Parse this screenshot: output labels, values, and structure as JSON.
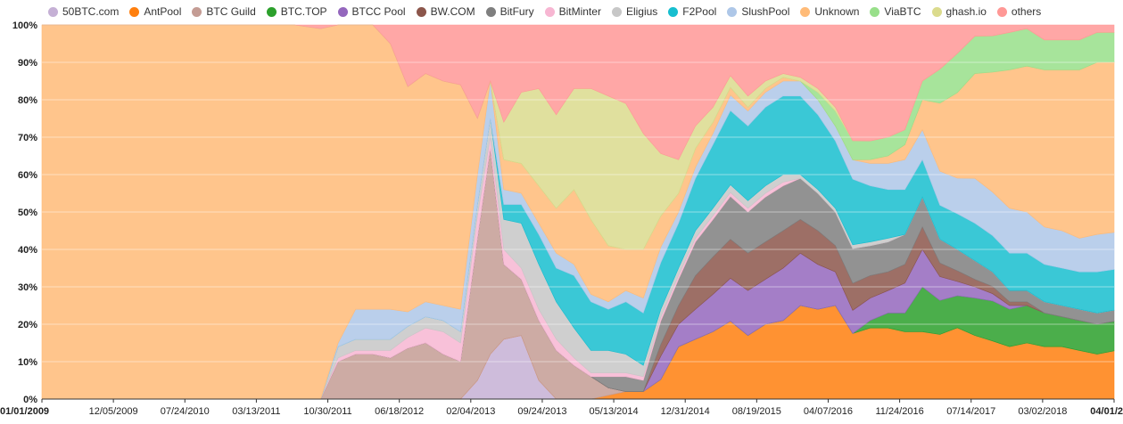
{
  "chart_data": {
    "type": "area",
    "stacked": true,
    "normalized": true,
    "grid": true,
    "legend_position": "top",
    "ylim": [
      0,
      100
    ],
    "y_ticks": [
      "0%",
      "10%",
      "20%",
      "30%",
      "40%",
      "50%",
      "60%",
      "70%",
      "80%",
      "90%",
      "100%"
    ],
    "x_ticks": [
      "01/01/2009",
      "12/05/2009",
      "07/24/2010",
      "03/13/2011",
      "10/30/2011",
      "06/18/2012",
      "02/04/2013",
      "09/24/2013",
      "05/13/2014",
      "12/31/2014",
      "08/19/2015",
      "04/07/2016",
      "11/24/2016",
      "07/14/2017",
      "03/02/2018",
      "04/01/2"
    ],
    "x": [
      "2009-01-01",
      "2011-03-01",
      "2011-06-01",
      "2011-09-01",
      "2011-11-01",
      "2012-01-01",
      "2012-03-01",
      "2012-05-01",
      "2012-07-01",
      "2012-09-01",
      "2012-11-01",
      "2013-01-01",
      "2013-03-01",
      "2013-04-15",
      "2013-06-01",
      "2013-08-01",
      "2013-10-01",
      "2013-12-01",
      "2014-02-01",
      "2014-04-01",
      "2014-06-01",
      "2014-08-01",
      "2014-10-01",
      "2014-12-01",
      "2015-02-01",
      "2015-04-01",
      "2015-06-01",
      "2015-08-01",
      "2015-10-01",
      "2015-12-01",
      "2016-02-01",
      "2016-04-01",
      "2016-06-01",
      "2016-08-01",
      "2016-10-01",
      "2016-12-01",
      "2017-02-01",
      "2017-04-01",
      "2017-06-01",
      "2017-08-01",
      "2017-10-01",
      "2017-12-01",
      "2018-02-01",
      "2018-04-01",
      "2018-06-01",
      "2018-08-01",
      "2018-10-01",
      "2018-12-01",
      "2019-02-01",
      "2019-04-01"
    ],
    "series": [
      {
        "name": "50BTC.com",
        "color": "#c5b0d5",
        "values": [
          0,
          0,
          0,
          0,
          0,
          0,
          0,
          0,
          0,
          0,
          0,
          0,
          5,
          12,
          16,
          17,
          5,
          0,
          0,
          0,
          0,
          0,
          0,
          0,
          0,
          0,
          0,
          0,
          0,
          0,
          0,
          0,
          0,
          0,
          0,
          0,
          0,
          0,
          0,
          0,
          0,
          0,
          0,
          0,
          0,
          0,
          0,
          0,
          0,
          0
        ]
      },
      {
        "name": "AntPool",
        "color": "#ff7f0e",
        "values": [
          0,
          0,
          0,
          0,
          0,
          0,
          0,
          0,
          0,
          0,
          0,
          0,
          0,
          0,
          0,
          0,
          0,
          0,
          0,
          0,
          1,
          2,
          2,
          5,
          14,
          16,
          18,
          20,
          17,
          20,
          21,
          25,
          24,
          25,
          17,
          19,
          19,
          18,
          18,
          19,
          20,
          17,
          16,
          14,
          15,
          14,
          14,
          13,
          12,
          13
        ]
      },
      {
        "name": "BTC Guild",
        "color": "#c49c94",
        "values": [
          0,
          0,
          0,
          0,
          10,
          12,
          12,
          11,
          14,
          15,
          12,
          10,
          38,
          55,
          20,
          15,
          16,
          13,
          9,
          6,
          2,
          0,
          0,
          0,
          0,
          0,
          0,
          0,
          0,
          0,
          0,
          0,
          0,
          0,
          0,
          0,
          0,
          0,
          0,
          0,
          0,
          0,
          0,
          0,
          0,
          0,
          0,
          0,
          0,
          0
        ]
      },
      {
        "name": "BTC.TOP",
        "color": "#2ca02c",
        "values": [
          0,
          0,
          0,
          0,
          0,
          0,
          0,
          0,
          0,
          0,
          0,
          0,
          0,
          0,
          0,
          0,
          0,
          0,
          0,
          0,
          0,
          0,
          0,
          0,
          0,
          0,
          0,
          0,
          0,
          0,
          0,
          0,
          0,
          0,
          0,
          2,
          4,
          5,
          12,
          10,
          9,
          10,
          11,
          10,
          10,
          9,
          8,
          8,
          8,
          8
        ]
      },
      {
        "name": "BTCC Pool",
        "color": "#9467bd",
        "values": [
          0,
          0,
          0,
          0,
          0,
          0,
          0,
          0,
          0,
          0,
          0,
          0,
          0,
          0,
          0,
          0,
          0,
          0,
          0,
          0,
          0,
          0,
          0,
          6,
          6,
          8,
          10,
          11,
          12,
          12,
          14,
          14,
          12,
          9,
          6,
          6,
          6,
          8,
          10,
          7,
          4,
          3,
          2,
          1,
          0,
          0,
          0,
          0,
          0,
          0
        ]
      },
      {
        "name": "BW.COM",
        "color": "#8c564b",
        "values": [
          0,
          0,
          0,
          0,
          0,
          0,
          0,
          0,
          0,
          0,
          0,
          0,
          0,
          0,
          0,
          0,
          0,
          0,
          0,
          0,
          0,
          0,
          0,
          3,
          5,
          9,
          10,
          10,
          10,
          10,
          10,
          9,
          9,
          7,
          7,
          6,
          5,
          5,
          6,
          4,
          3,
          2,
          2,
          1,
          1,
          0,
          0,
          0,
          0,
          0
        ]
      },
      {
        "name": "BitFury",
        "color": "#7f7f7f",
        "values": [
          0,
          0,
          0,
          0,
          0,
          0,
          0,
          0,
          0,
          0,
          0,
          0,
          0,
          0,
          0,
          0,
          0,
          0,
          0,
          0,
          3,
          4,
          3,
          6,
          7,
          9,
          10,
          11,
          11,
          12,
          12,
          11,
          10,
          9,
          9,
          8,
          8,
          8,
          8,
          7,
          6,
          5,
          4,
          3,
          3,
          3,
          3,
          3,
          3,
          3
        ]
      },
      {
        "name": "BitMinter",
        "color": "#f7b6d2",
        "values": [
          0,
          0,
          0,
          0,
          1,
          1,
          1,
          2,
          3,
          4,
          6,
          5,
          6,
          3,
          4,
          3,
          3,
          3,
          2,
          1,
          1,
          1,
          1,
          1,
          1,
          1,
          1,
          1,
          1,
          1,
          1,
          0,
          0,
          0,
          0,
          0,
          0,
          0,
          0,
          0,
          0,
          0,
          0,
          0,
          0,
          0,
          0,
          0,
          0,
          0
        ]
      },
      {
        "name": "Eligius",
        "color": "#c7c7c7",
        "values": [
          0,
          0,
          0,
          0,
          3,
          3,
          3,
          3,
          3,
          3,
          3,
          3,
          3,
          5,
          8,
          12,
          12,
          10,
          8,
          6,
          6,
          5,
          3,
          2,
          2,
          2,
          2,
          2,
          2,
          2,
          2,
          1,
          1,
          1,
          1,
          1,
          1,
          0,
          0,
          0,
          0,
          0,
          0,
          0,
          0,
          0,
          0,
          0,
          0,
          0
        ]
      },
      {
        "name": "F2Pool",
        "color": "#17becf",
        "values": [
          0,
          0,
          0,
          0,
          0,
          0,
          0,
          0,
          0,
          0,
          0,
          0,
          0,
          0,
          4,
          5,
          8,
          9,
          14,
          13,
          11,
          14,
          14,
          12,
          12,
          14,
          17,
          19,
          20,
          21,
          21,
          21,
          20,
          18,
          17,
          15,
          13,
          12,
          10,
          10,
          10,
          10,
          10,
          10,
          10,
          10,
          10,
          10,
          11,
          11
        ]
      },
      {
        "name": "SlushPool",
        "color": "#aec7e8",
        "values": [
          0,
          0,
          0,
          0,
          1,
          8,
          8,
          8,
          4,
          4,
          4,
          6,
          8,
          10,
          4,
          3,
          3,
          4,
          3,
          2,
          2,
          3,
          4,
          4,
          3,
          3,
          3,
          4,
          4,
          4,
          4,
          4,
          4,
          4,
          5,
          6,
          7,
          8,
          8,
          10,
          10,
          12,
          12,
          12,
          11,
          10,
          10,
          9,
          10,
          10
        ]
      },
      {
        "name": "Unknown",
        "color": "#ffbb78",
        "values": [
          100,
          100,
          100,
          99,
          85,
          76,
          76,
          71,
          62,
          61,
          60,
          60,
          15,
          0,
          8,
          8,
          10,
          12,
          20,
          20,
          15,
          11,
          13,
          8,
          5,
          5,
          3,
          2,
          1,
          1,
          1,
          0,
          0,
          0,
          0,
          1,
          2,
          4,
          8,
          20,
          24,
          28,
          33,
          37,
          39,
          42,
          43,
          45,
          46,
          46
        ]
      },
      {
        "name": "ViaBTC",
        "color": "#98df8a",
        "values": [
          0,
          0,
          0,
          0,
          0,
          0,
          0,
          0,
          0,
          0,
          0,
          0,
          0,
          0,
          0,
          0,
          0,
          0,
          0,
          0,
          0,
          0,
          0,
          0,
          0,
          0,
          0,
          0,
          0,
          0,
          0,
          0,
          2,
          4,
          5,
          5,
          5,
          4,
          5,
          10,
          11,
          10,
          10,
          10,
          10,
          8,
          8,
          8,
          8,
          8
        ]
      },
      {
        "name": "ghash.io",
        "color": "#dbdb8d",
        "values": [
          0,
          0,
          0,
          0,
          0,
          0,
          0,
          0,
          0,
          0,
          0,
          0,
          0,
          0,
          10,
          19,
          26,
          25,
          27,
          35,
          40,
          39,
          31,
          16,
          9,
          6,
          4,
          3,
          3,
          2,
          1,
          1,
          1,
          1,
          0,
          0,
          0,
          0,
          0,
          0,
          0,
          0,
          0,
          0,
          0,
          0,
          0,
          0,
          0,
          0
        ]
      },
      {
        "name": "others",
        "color": "#ff9896",
        "values": [
          0,
          0,
          0,
          1,
          0,
          0,
          0,
          5,
          17,
          13,
          15,
          16,
          25,
          15,
          26,
          18,
          17,
          24,
          17,
          17,
          19,
          21,
          29,
          33,
          36,
          27,
          22,
          13,
          19,
          15,
          13,
          14,
          17,
          22,
          30,
          31,
          30,
          28,
          15,
          13,
          8,
          3,
          3,
          2,
          1,
          4,
          4,
          4,
          2,
          2
        ]
      }
    ]
  }
}
